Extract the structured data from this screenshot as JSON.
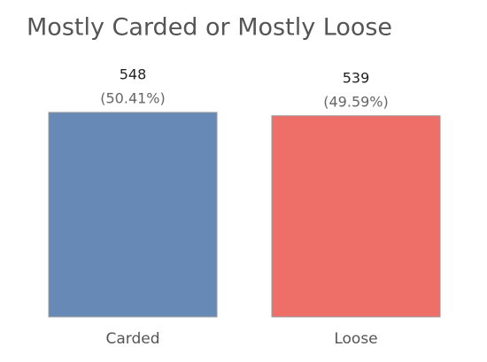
{
  "chart_data": {
    "type": "bar",
    "title": "Mostly Carded or Mostly Loose",
    "categories": [
      "Carded",
      "Loose"
    ],
    "values": [
      548,
      539
    ],
    "shares": [
      50.41,
      49.59
    ],
    "share_labels": [
      "(50.41%)",
      "(49.59%)"
    ],
    "colors": [
      "#6689b5",
      "#ee6e68"
    ]
  }
}
